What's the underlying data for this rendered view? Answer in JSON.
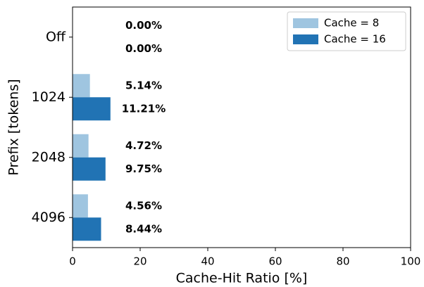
{
  "chart_data": {
    "type": "hbar",
    "xlabel": "Cache-Hit Ratio  [%]",
    "ylabel": "Prefix [tokens]",
    "categories": [
      "Off",
      "1024",
      "2048",
      "4096"
    ],
    "series": [
      {
        "name": "Cache = 8",
        "color": "#9fc5e0",
        "values": [
          0,
          5.14,
          4.72,
          4.56
        ],
        "value_labels": [
          "0.00%",
          "5.14%",
          "4.72%",
          "4.56%"
        ]
      },
      {
        "name": "Cache = 16",
        "color": "#2173b4",
        "values": [
          0,
          11.21,
          9.75,
          8.44
        ],
        "value_labels": [
          "0.00%",
          "11.21%",
          "9.75%",
          "8.44%"
        ]
      }
    ],
    "xlim": [
      0,
      100
    ],
    "xticks": [
      0,
      20,
      40,
      60,
      80,
      100
    ],
    "legend": "upper right"
  }
}
